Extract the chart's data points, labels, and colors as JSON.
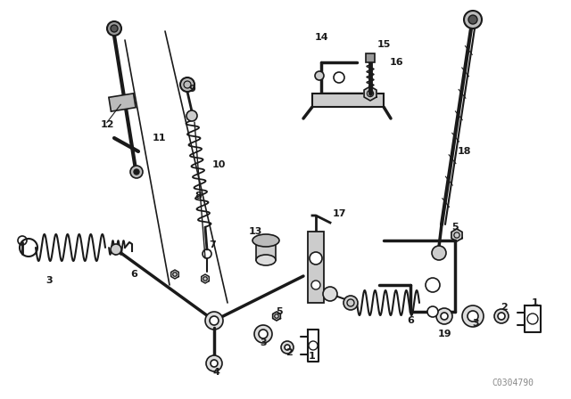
{
  "bg_color": "#ffffff",
  "diagram_color": "#1a1a1a",
  "watermark": "C0304790",
  "fig_width": 6.4,
  "fig_height": 4.48,
  "dpi": 100
}
